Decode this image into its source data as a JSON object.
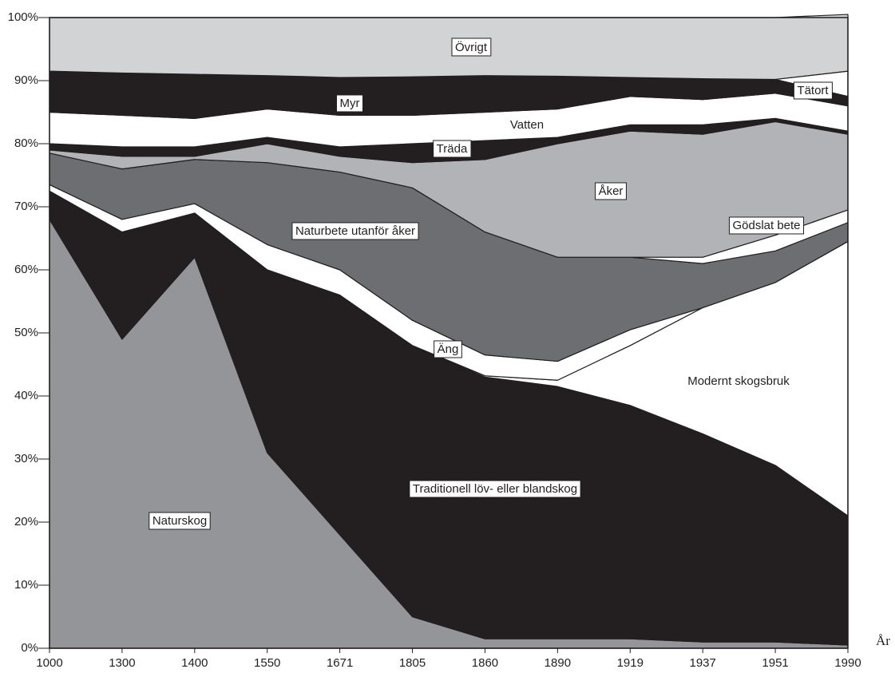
{
  "chart_data": {
    "type": "stacked_area",
    "x_label": "År",
    "categories": [
      "1000",
      "1300",
      "1400",
      "1550",
      "1671",
      "1805",
      "1860",
      "1890",
      "1919",
      "1937",
      "1951",
      "1990"
    ],
    "ylim": [
      0,
      100
    ],
    "yticks": [
      {
        "value": 0,
        "label": "0%"
      },
      {
        "value": 10,
        "label": "10%"
      },
      {
        "value": 20,
        "label": "20%"
      },
      {
        "value": 30,
        "label": "30%"
      },
      {
        "value": 40,
        "label": "40%"
      },
      {
        "value": 50,
        "label": "50%"
      },
      {
        "value": 60,
        "label": "60%"
      },
      {
        "value": 70,
        "label": "70%"
      },
      {
        "value": 80,
        "label": "80%"
      },
      {
        "value": 90,
        "label": "90%"
      },
      {
        "value": 100,
        "label": "100%"
      }
    ],
    "series": [
      {
        "name": "Naturskog",
        "color": "#939598",
        "values": [
          68,
          49,
          62,
          31,
          18,
          5,
          1.5,
          1.5,
          1.5,
          1,
          1,
          0.5
        ]
      },
      {
        "name": "Traditionell löv- eller blandskog",
        "color": "#231f20",
        "values": [
          4.5,
          17,
          7,
          29,
          38,
          43,
          41.5,
          40,
          37,
          33,
          28,
          20.5
        ]
      },
      {
        "name": "Modernt skogsbruk",
        "color": "#ffffff",
        "values": [
          0,
          0,
          0,
          0,
          0,
          0,
          0.2,
          1,
          9.5,
          20,
          29,
          43.5
        ]
      },
      {
        "name": "Äng",
        "color": "#ffffff",
        "values": [
          1,
          2,
          1.5,
          4,
          4,
          4,
          3.3,
          3,
          2.5,
          0,
          0,
          0
        ]
      },
      {
        "name": "Naturbete utanför åker",
        "color": "#6d6e71",
        "values": [
          5,
          8,
          7,
          13,
          15.5,
          21,
          19.5,
          16.5,
          11.5,
          7,
          5,
          3
        ]
      },
      {
        "name": "Gödslat bete",
        "color": "#ffffff",
        "values": [
          0,
          0,
          0,
          0,
          0,
          0,
          0,
          0,
          0,
          1,
          2.5,
          2
        ]
      },
      {
        "name": "Åker",
        "color": "#b1b3b6",
        "values": [
          0.5,
          2,
          0.5,
          3,
          2.5,
          4,
          11.5,
          18,
          20,
          19.5,
          18,
          12
        ]
      },
      {
        "name": "Träda",
        "color": "#231f20",
        "values": [
          1,
          1.5,
          1.5,
          1,
          1.5,
          3,
          3,
          1,
          1,
          1.5,
          0.5,
          0.5
        ]
      },
      {
        "name": "Vatten",
        "color": "#ffffff",
        "values": [
          5,
          5,
          4.5,
          4.5,
          5,
          4.5,
          4.5,
          4.5,
          4.5,
          4,
          4,
          4
        ]
      },
      {
        "name": "Myr",
        "color": "#231f20",
        "values": [
          6.5,
          6.7,
          7,
          5.3,
          6,
          6.1,
          5.8,
          5.2,
          3,
          3.3,
          2.2,
          1.5
        ]
      },
      {
        "name": "Tätort",
        "color": "#ffffff",
        "values": [
          0,
          0,
          0,
          0,
          0,
          0,
          0,
          0,
          0,
          0,
          0,
          4
        ]
      },
      {
        "name": "Övrigt",
        "color": "#d1d3d4",
        "values": [
          8.5,
          8.8,
          9,
          9.2,
          9.5,
          9.4,
          9.2,
          9.3,
          9.5,
          9.7,
          9.8,
          9
        ]
      }
    ]
  }
}
